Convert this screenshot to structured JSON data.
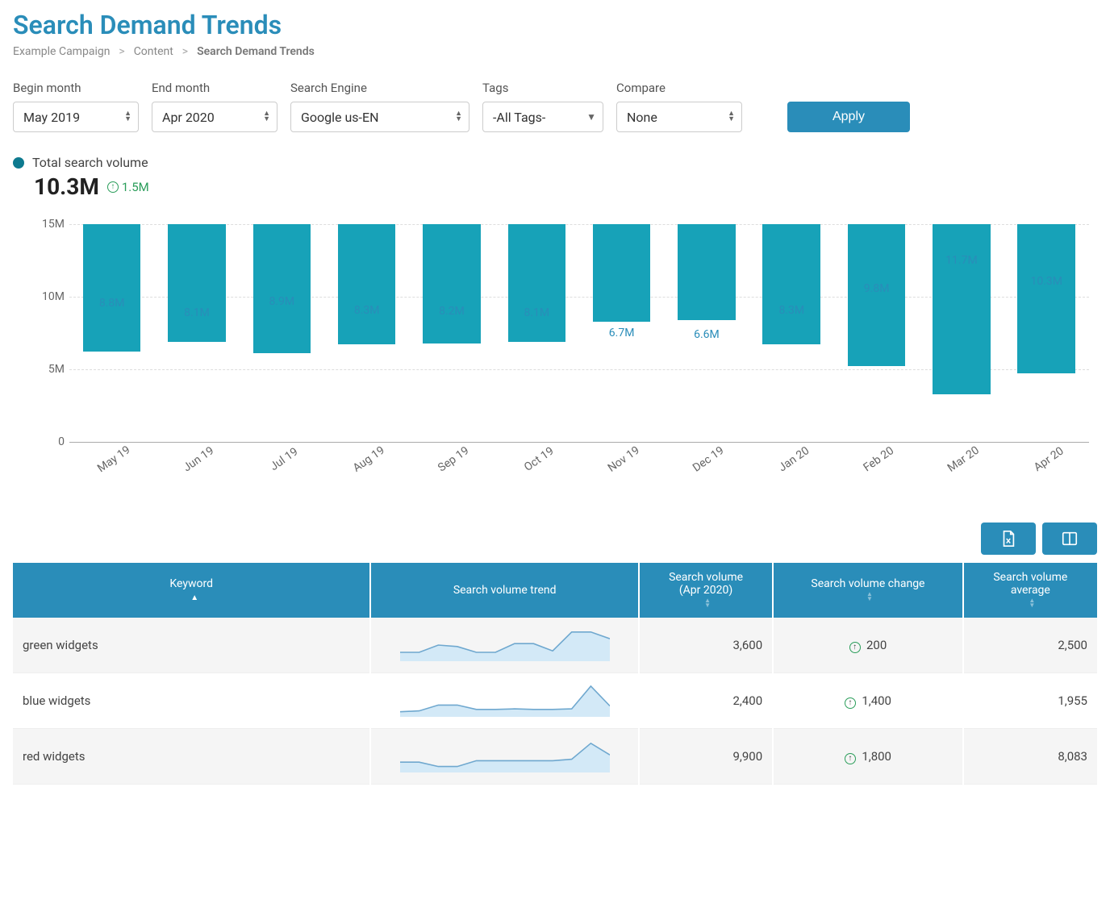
{
  "page": {
    "title": "Search Demand Trends",
    "breadcrumb": [
      "Example Campaign",
      "Content",
      "Search Demand Trends"
    ]
  },
  "filters": {
    "begin_month": {
      "label": "Begin month",
      "value": "May 2019"
    },
    "end_month": {
      "label": "End month",
      "value": "Apr 2020"
    },
    "search_engine": {
      "label": "Search Engine",
      "value": "Google us-EN"
    },
    "tags": {
      "label": "Tags",
      "value": "-All Tags-"
    },
    "compare": {
      "label": "Compare",
      "value": "None"
    },
    "apply_label": "Apply"
  },
  "kpi": {
    "label": "Total search volume",
    "value": "10.3M",
    "delta": "1.5M",
    "delta_direction": "up",
    "dot_color": "#0e7a8f"
  },
  "chart": {
    "type": "bar",
    "bar_color": "#17a2b8",
    "label_color": "#2a8db9",
    "grid_color": "#dddddd",
    "axis_color": "#aaaaaa",
    "y_ticks": [
      {
        "value": 0,
        "label": "0"
      },
      {
        "value": 5000000,
        "label": "5M"
      },
      {
        "value": 10000000,
        "label": "10M"
      },
      {
        "value": 15000000,
        "label": "15M"
      }
    ],
    "y_max": 15000000,
    "bars": [
      {
        "x": "May 19",
        "value": 8800000,
        "label": "8.8M"
      },
      {
        "x": "Jun 19",
        "value": 8100000,
        "label": "8.1M"
      },
      {
        "x": "Jul 19",
        "value": 8900000,
        "label": "8.9M"
      },
      {
        "x": "Aug 19",
        "value": 8300000,
        "label": "8.3M"
      },
      {
        "x": "Sep 19",
        "value": 8200000,
        "label": "8.2M"
      },
      {
        "x": "Oct 19",
        "value": 8100000,
        "label": "8.1M"
      },
      {
        "x": "Nov 19",
        "value": 6700000,
        "label": "6.7M"
      },
      {
        "x": "Dec 19",
        "value": 6600000,
        "label": "6.6M"
      },
      {
        "x": "Jan 20",
        "value": 8300000,
        "label": "8.3M"
      },
      {
        "x": "Feb 20",
        "value": 9800000,
        "label": "9.8M"
      },
      {
        "x": "Mar 20",
        "value": 11700000,
        "label": "11.7M"
      },
      {
        "x": "Apr 20",
        "value": 10300000,
        "label": "10.3M"
      }
    ]
  },
  "table": {
    "header_bg": "#2a8db9",
    "spark_fill": "#d3e9f7",
    "spark_stroke": "#6fa8cf",
    "columns": [
      {
        "key": "keyword",
        "label": "Keyword",
        "sort": "asc_active"
      },
      {
        "key": "trend",
        "label": "Search volume trend",
        "sort": "none"
      },
      {
        "key": "vol",
        "label": "Search volume\n(Apr 2020)",
        "sort": "both"
      },
      {
        "key": "change",
        "label": "Search volume change",
        "sort": "both"
      },
      {
        "key": "avg",
        "label": "Search volume\naverage",
        "sort": "both"
      }
    ],
    "rows": [
      {
        "keyword": "green widgets",
        "trend": [
          0.25,
          0.25,
          0.5,
          0.45,
          0.25,
          0.25,
          0.55,
          0.55,
          0.3,
          0.95,
          0.95,
          0.72
        ],
        "volume": "3,600",
        "change": "200",
        "change_dir": "up",
        "average": "2,500"
      },
      {
        "keyword": "blue widgets",
        "trend": [
          0.12,
          0.15,
          0.35,
          0.35,
          0.2,
          0.2,
          0.22,
          0.2,
          0.2,
          0.22,
          1.0,
          0.32
        ],
        "volume": "2,400",
        "change": "1,400",
        "change_dir": "up",
        "average": "1,955"
      },
      {
        "keyword": "red widgets",
        "trend": [
          0.3,
          0.3,
          0.15,
          0.15,
          0.35,
          0.35,
          0.35,
          0.35,
          0.35,
          0.4,
          0.95,
          0.55
        ],
        "volume": "9,900",
        "change": "1,800",
        "change_dir": "up",
        "average": "8,083"
      }
    ]
  }
}
